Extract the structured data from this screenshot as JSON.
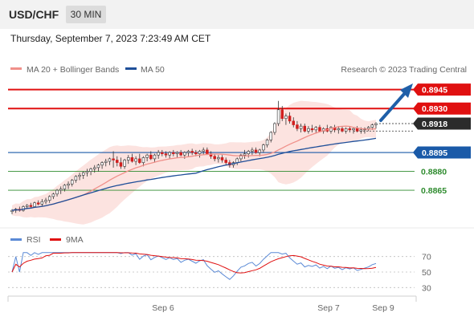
{
  "header": {
    "symbol": "USD/CHF",
    "timeframe": "30 MIN"
  },
  "datetime": "Thursday, September 7, 2023 7:23:49 AM CET",
  "legend": {
    "ma20": "MA 20 + Bollinger Bands",
    "ma50": "MA 50",
    "rsi": "RSI",
    "ma9": "9MA",
    "credit": "Research © 2023 Trading Central"
  },
  "colors": {
    "up": "#ffffff",
    "down": "#d11f1f",
    "wick": "#333333",
    "resistance": "#e01010",
    "support": "#1a5aa8",
    "target": "#2e8b2e",
    "ma20": "#f0908a",
    "ma50": "#1f4f99",
    "bands": "#fbd9d6",
    "rsi": "#5b8ad6",
    "rsi_ma": "#e01010",
    "arrow": "#1f5fa8"
  },
  "levels": [
    {
      "price": "0.8945",
      "kind": "resistance"
    },
    {
      "price": "0.8930",
      "kind": "resistance"
    },
    {
      "price": "0.8918",
      "kind": "current"
    },
    {
      "price": "0.8895",
      "kind": "support"
    },
    {
      "price": "0.8880",
      "kind": "target"
    },
    {
      "price": "0.8865",
      "kind": "target"
    }
  ],
  "chart_data": [
    {
      "type": "candlestick",
      "title": "USD/CHF",
      "timeframe": "30 MIN",
      "x_ticks": [
        "Sep 6",
        "Sep 7",
        "Sep 9"
      ],
      "ylim": [
        0.8844,
        0.8955
      ],
      "series": [
        {
          "name": "MA 20 + Bollinger Bands"
        },
        {
          "name": "MA 50"
        }
      ],
      "price_levels": [
        0.8945,
        0.893,
        0.8918,
        0.8895,
        0.888,
        0.8865
      ],
      "last_price": 0.8918,
      "forecast": "up",
      "ohlc": [
        [
          0.8848,
          0.885,
          0.8846,
          0.8849
        ],
        [
          0.8849,
          0.8851,
          0.8847,
          0.885
        ],
        [
          0.885,
          0.8852,
          0.8848,
          0.8849
        ],
        [
          0.8849,
          0.8853,
          0.8848,
          0.8852
        ],
        [
          0.8852,
          0.8854,
          0.885,
          0.8853
        ],
        [
          0.8853,
          0.8855,
          0.8851,
          0.8852
        ],
        [
          0.8852,
          0.8856,
          0.8851,
          0.8855
        ],
        [
          0.8855,
          0.8857,
          0.8853,
          0.8854
        ],
        [
          0.8854,
          0.8858,
          0.8852,
          0.8856
        ],
        [
          0.8856,
          0.8859,
          0.8854,
          0.8857
        ],
        [
          0.8857,
          0.8861,
          0.8855,
          0.886
        ],
        [
          0.886,
          0.8863,
          0.8858,
          0.8862
        ],
        [
          0.8862,
          0.8866,
          0.886,
          0.8865
        ],
        [
          0.8865,
          0.8868,
          0.8862,
          0.8866
        ],
        [
          0.8866,
          0.887,
          0.8864,
          0.8869
        ],
        [
          0.8869,
          0.8872,
          0.8866,
          0.887
        ],
        [
          0.887,
          0.8874,
          0.8868,
          0.8873
        ],
        [
          0.8873,
          0.8877,
          0.8871,
          0.8876
        ],
        [
          0.8876,
          0.8879,
          0.8873,
          0.8877
        ],
        [
          0.8877,
          0.888,
          0.8874,
          0.8879
        ],
        [
          0.8879,
          0.8882,
          0.8876,
          0.888
        ],
        [
          0.888,
          0.8883,
          0.8877,
          0.8882
        ],
        [
          0.8882,
          0.8885,
          0.8879,
          0.8883
        ],
        [
          0.8883,
          0.8886,
          0.888,
          0.8885
        ],
        [
          0.8885,
          0.8888,
          0.8882,
          0.8887
        ],
        [
          0.8887,
          0.889,
          0.8884,
          0.8888
        ],
        [
          0.8888,
          0.8891,
          0.8885,
          0.889
        ],
        [
          0.889,
          0.8896,
          0.8883,
          0.8889
        ],
        [
          0.8889,
          0.8892,
          0.8884,
          0.8887
        ],
        [
          0.8887,
          0.8891,
          0.8882,
          0.8884
        ],
        [
          0.8884,
          0.889,
          0.8882,
          0.8889
        ],
        [
          0.8889,
          0.8893,
          0.8886,
          0.8891
        ],
        [
          0.8891,
          0.8894,
          0.8887,
          0.8888
        ],
        [
          0.8888,
          0.8892,
          0.8885,
          0.889
        ],
        [
          0.889,
          0.8894,
          0.8886,
          0.8887
        ],
        [
          0.8887,
          0.8892,
          0.8884,
          0.8891
        ],
        [
          0.8891,
          0.8894,
          0.8888,
          0.8893
        ],
        [
          0.8893,
          0.8896,
          0.8889,
          0.889
        ],
        [
          0.889,
          0.8894,
          0.8887,
          0.8893
        ],
        [
          0.8893,
          0.8897,
          0.889,
          0.8895
        ],
        [
          0.8895,
          0.8897,
          0.8892,
          0.8894
        ],
        [
          0.8894,
          0.8896,
          0.8891,
          0.8893
        ],
        [
          0.8893,
          0.8896,
          0.889,
          0.8895
        ],
        [
          0.8895,
          0.8897,
          0.8892,
          0.8894
        ],
        [
          0.8894,
          0.8896,
          0.8891,
          0.8895
        ],
        [
          0.8895,
          0.8897,
          0.8892,
          0.8893
        ],
        [
          0.8893,
          0.8896,
          0.889,
          0.8895
        ],
        [
          0.8895,
          0.8897,
          0.8892,
          0.8896
        ],
        [
          0.8896,
          0.8898,
          0.8893,
          0.8895
        ],
        [
          0.8895,
          0.8897,
          0.8892,
          0.8894
        ],
        [
          0.8894,
          0.8897,
          0.8891,
          0.8896
        ],
        [
          0.8896,
          0.8899,
          0.8893,
          0.8897
        ],
        [
          0.8897,
          0.8899,
          0.8893,
          0.8894
        ],
        [
          0.8894,
          0.8896,
          0.889,
          0.8892
        ],
        [
          0.8892,
          0.8894,
          0.8888,
          0.889
        ],
        [
          0.889,
          0.8893,
          0.8887,
          0.8891
        ],
        [
          0.8891,
          0.8893,
          0.8887,
          0.8889
        ],
        [
          0.8889,
          0.8891,
          0.8885,
          0.8887
        ],
        [
          0.8887,
          0.8889,
          0.8883,
          0.8885
        ],
        [
          0.8885,
          0.8888,
          0.8883,
          0.8887
        ],
        [
          0.8887,
          0.8891,
          0.8885,
          0.889
        ],
        [
          0.889,
          0.8894,
          0.8888,
          0.8893
        ],
        [
          0.8893,
          0.8897,
          0.889,
          0.8894
        ],
        [
          0.8894,
          0.8897,
          0.8891,
          0.8896
        ],
        [
          0.8896,
          0.8899,
          0.8893,
          0.8897
        ],
        [
          0.8897,
          0.8899,
          0.8894,
          0.8895
        ],
        [
          0.8895,
          0.8898,
          0.8892,
          0.8897
        ],
        [
          0.8897,
          0.8902,
          0.8895,
          0.8901
        ],
        [
          0.8901,
          0.8906,
          0.8899,
          0.8905
        ],
        [
          0.8905,
          0.8912,
          0.8903,
          0.8911
        ],
        [
          0.8911,
          0.8919,
          0.8909,
          0.8918
        ],
        [
          0.8918,
          0.8936,
          0.8916,
          0.8929
        ],
        [
          0.8929,
          0.8932,
          0.892,
          0.8922
        ],
        [
          0.8922,
          0.8926,
          0.8917,
          0.8924
        ],
        [
          0.8924,
          0.8927,
          0.8918,
          0.892
        ],
        [
          0.892,
          0.8923,
          0.8915,
          0.8917
        ],
        [
          0.8917,
          0.892,
          0.8912,
          0.8914
        ],
        [
          0.8914,
          0.8918,
          0.8911,
          0.8916
        ],
        [
          0.8916,
          0.8918,
          0.8911,
          0.8912
        ],
        [
          0.8912,
          0.8916,
          0.891,
          0.8914
        ],
        [
          0.8914,
          0.8917,
          0.8911,
          0.8913
        ],
        [
          0.8913,
          0.8916,
          0.891,
          0.8915
        ],
        [
          0.8915,
          0.8917,
          0.8911,
          0.8912
        ],
        [
          0.8912,
          0.8915,
          0.891,
          0.8914
        ],
        [
          0.8914,
          0.8917,
          0.8911,
          0.8912
        ],
        [
          0.8912,
          0.8916,
          0.891,
          0.8915
        ],
        [
          0.8915,
          0.8917,
          0.8911,
          0.8913
        ],
        [
          0.8913,
          0.8916,
          0.891,
          0.8914
        ],
        [
          0.8914,
          0.8916,
          0.8911,
          0.8912
        ],
        [
          0.8912,
          0.8915,
          0.891,
          0.8914
        ],
        [
          0.8914,
          0.8916,
          0.8911,
          0.8913
        ],
        [
          0.8913,
          0.8915,
          0.891,
          0.8914
        ],
        [
          0.8914,
          0.8916,
          0.8911,
          0.8912
        ],
        [
          0.8912,
          0.8915,
          0.891,
          0.8913
        ],
        [
          0.8913,
          0.8915,
          0.891,
          0.8914
        ],
        [
          0.8914,
          0.8916,
          0.8912,
          0.8915
        ],
        [
          0.8915,
          0.8918,
          0.8913,
          0.8917
        ],
        [
          0.8917,
          0.8919,
          0.8914,
          0.8918
        ]
      ]
    },
    {
      "type": "line",
      "title": "RSI",
      "series": [
        {
          "name": "RSI"
        },
        {
          "name": "9MA"
        }
      ],
      "y_ticks": [
        70,
        50,
        30
      ],
      "ylim": [
        20,
        80
      ]
    }
  ]
}
